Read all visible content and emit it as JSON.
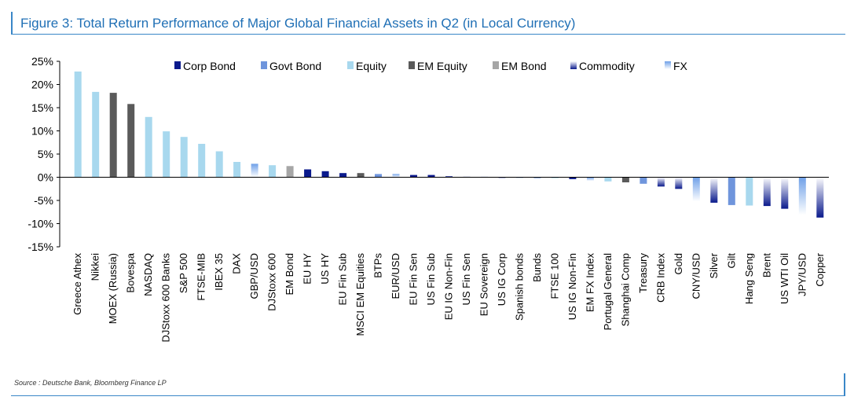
{
  "title": "Figure 3: Total Return Performance of Major Global Financial Assets in Q2 (in Local Currency)",
  "source": "Source : Deutsche Bank, Bloomberg Finance LP",
  "colors": {
    "Corp Bond": "#0a1a8c",
    "Govt Bond": "#6f95dc",
    "Equity": "#a8d8ee",
    "EM Equity": "#5a5a5a",
    "EM Bond": "#a6a6a6",
    "Commodity": [
      "#0a1a8c",
      "#ffffff"
    ],
    "FX": [
      "#6fa0e8",
      "#ffffff"
    ]
  },
  "chart_data": {
    "type": "bar",
    "title": "Figure 3: Total Return Performance of Major Global Financial Assets in Q2 (in Local Currency)",
    "xlabel": "",
    "ylabel": "",
    "ylim": [
      -15,
      25
    ],
    "yticks": [
      "25%",
      "20%",
      "15%",
      "10%",
      "5%",
      "0%",
      "-5%",
      "-10%",
      "-15%"
    ],
    "legend": [
      "Corp Bond",
      "Govt Bond",
      "Equity",
      "EM Equity",
      "EM Bond",
      "Commodity",
      "FX"
    ],
    "legend_position": "top-right",
    "grid": false,
    "categories": [
      "Greece Athex",
      "Nikkei",
      "MOEX (Russia)",
      "Bovespa",
      "NASDAQ",
      "DJStoxx 600 Banks",
      "S&P 500",
      "FTSE-MIB",
      "IBEX 35",
      "DAX",
      "GBP/USD",
      "DJStoxx 600",
      "EM Bond",
      "EU HY",
      "US HY",
      "EU Fin Sub",
      "MSCI EM Equities",
      "BTPs",
      "EUR/USD",
      "EU Fin Sen",
      "US Fin Sub",
      "EU IG Non-Fin",
      "US Fin Sen",
      "EU Sovereign",
      "US IG Corp",
      "Spanish bonds",
      "Bunds",
      "FTSE 100",
      "US IG Non-Fin",
      "EM FX Index",
      "Portugal General",
      "Shanghai Comp",
      "Treasury",
      "CRB Index",
      "Gold",
      "CNY/USD",
      "Silver",
      "Gilt",
      "Hang Seng",
      "Brent",
      "US WTI Oil",
      "JPY/USD",
      "Copper"
    ],
    "values": [
      22.8,
      18.4,
      18.2,
      15.8,
      13.0,
      9.9,
      8.7,
      7.2,
      5.6,
      3.3,
      2.9,
      2.6,
      2.4,
      1.7,
      1.3,
      0.9,
      0.9,
      0.7,
      0.7,
      0.5,
      0.5,
      0.2,
      0.1,
      0.1,
      -0.1,
      -0.1,
      -0.2,
      -0.2,
      -0.4,
      -0.8,
      -0.9,
      -1.1,
      -1.4,
      -2.0,
      -2.5,
      -5.2,
      -5.5,
      -6.0,
      -6.1,
      -6.2,
      -6.8,
      -8.1,
      -8.7
    ],
    "groups": [
      "Equity",
      "Equity",
      "EM Equity",
      "EM Equity",
      "Equity",
      "Equity",
      "Equity",
      "Equity",
      "Equity",
      "Equity",
      "FX",
      "Equity",
      "EM Bond",
      "Corp Bond",
      "Corp Bond",
      "Corp Bond",
      "EM Equity",
      "Govt Bond",
      "FX",
      "Corp Bond",
      "Corp Bond",
      "Corp Bond",
      "Corp Bond",
      "Govt Bond",
      "Corp Bond",
      "Govt Bond",
      "Govt Bond",
      "Equity",
      "Corp Bond",
      "FX",
      "Equity",
      "EM Equity",
      "Govt Bond",
      "Commodity",
      "Commodity",
      "FX",
      "Commodity",
      "Govt Bond",
      "Equity",
      "Commodity",
      "Commodity",
      "FX",
      "Commodity"
    ]
  }
}
